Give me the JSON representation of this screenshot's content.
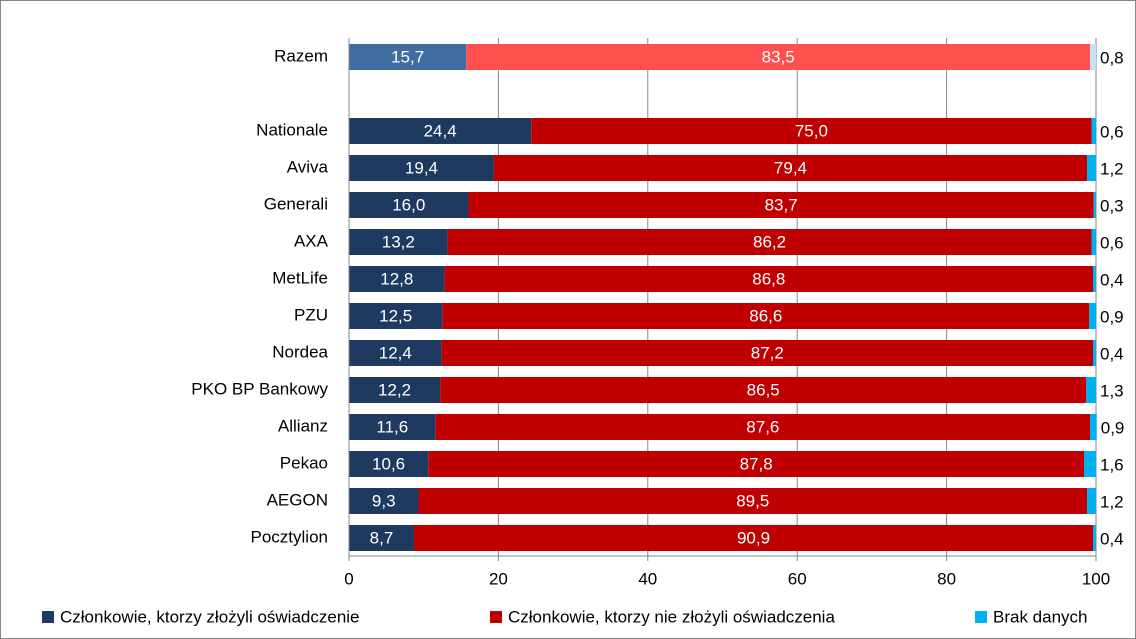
{
  "chart_data": {
    "type": "stacked_bar_horizontal",
    "categories": [
      "Razem",
      null,
      "Nationale",
      "Aviva",
      "Generali",
      "AXA",
      "MetLife",
      "PZU",
      "Nordea",
      "PKO BP Bankowy",
      "Allianz",
      "Pekao",
      "AEGON",
      "Pocztylion"
    ],
    "series": [
      {
        "name": "Członkowie, ktorzy złożyli oświadczenie",
        "color": "#1f3a60",
        "highlight_color": "#416ea1",
        "values": [
          15.7,
          null,
          24.4,
          19.4,
          16.0,
          13.2,
          12.8,
          12.5,
          12.4,
          12.2,
          11.6,
          10.6,
          9.3,
          8.7
        ],
        "value_labels": [
          "15,7",
          null,
          "24,4",
          "19,4",
          "16,0",
          "13,2",
          "12,8",
          "12,5",
          "12,4",
          "12,2",
          "11,6",
          "10,6",
          "9,3",
          "8,7"
        ]
      },
      {
        "name": "Członkowie, ktorzy nie złożyli oświadczenia",
        "color": "#c00000",
        "highlight_color": "#ff4f4f",
        "values": [
          83.5,
          null,
          75.0,
          79.4,
          83.7,
          86.2,
          86.8,
          86.6,
          87.2,
          86.5,
          87.6,
          87.8,
          89.5,
          90.9
        ],
        "value_labels": [
          "83,5",
          null,
          "75,0",
          "79,4",
          "83,7",
          "86,2",
          "86,8",
          "86,6",
          "87,2",
          "86,5",
          "87,6",
          "87,8",
          "89,5",
          "90,9"
        ]
      },
      {
        "name": "Brak danych",
        "color": "#00b0f0",
        "highlight_color": "#c6dff2",
        "values": [
          0.8,
          null,
          0.6,
          1.2,
          0.3,
          0.6,
          0.4,
          0.9,
          0.4,
          1.3,
          0.9,
          1.6,
          1.2,
          0.4
        ],
        "value_labels": [
          "0,8",
          null,
          "0,6",
          "1,2",
          "0,3",
          "0,6",
          "0,4",
          "0,9",
          "0,4",
          "1,3",
          "0,9",
          "1,6",
          "1,2",
          "0,4"
        ]
      }
    ],
    "highlight_index": 0,
    "xlim": [
      0,
      100
    ],
    "xticks": [
      0,
      20,
      40,
      60,
      80,
      100
    ],
    "grid": true,
    "legend": "bottom"
  }
}
